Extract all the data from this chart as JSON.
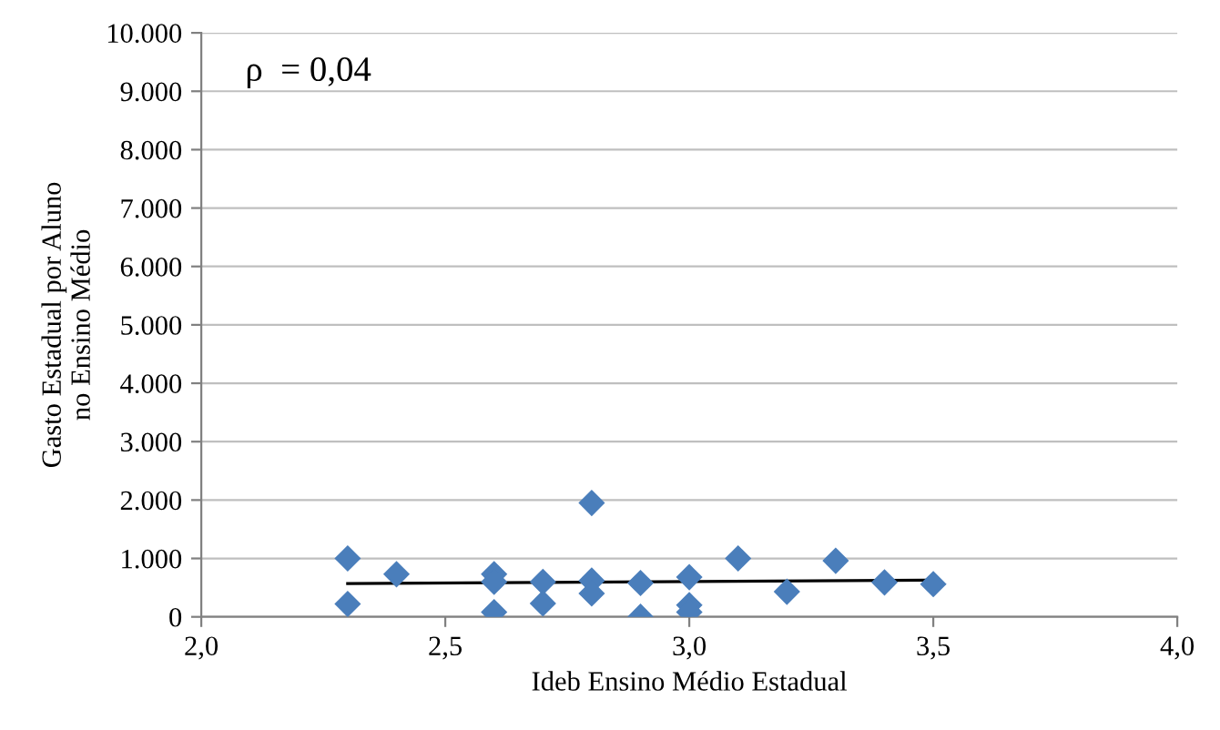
{
  "chart_data": {
    "type": "scatter",
    "xlabel": "Ideb Ensino Médio Estadual",
    "ylabel": "Gasto Estadual por Aluno\nno Ensino Médio",
    "annotations": [
      "ρ  = 0,04"
    ],
    "series": [
      {
        "color": "#4a7ebb",
        "marker": "diamond",
        "x": [
          2.3,
          2.3,
          2.4,
          2.6,
          2.6,
          2.6,
          2.7,
          2.7,
          2.8,
          2.8,
          2.8,
          2.9,
          2.9,
          3.0,
          3.0,
          3.0,
          3.1,
          3.2,
          3.3,
          3.4,
          3.5
        ],
        "values": [
          1000,
          220,
          730,
          730,
          600,
          80,
          600,
          230,
          1950,
          620,
          400,
          580,
          0,
          680,
          200,
          80,
          1000,
          430,
          960,
          590,
          560
        ]
      },
      {
        "type": "line",
        "color": "#000000",
        "marker": "none",
        "x": [
          2.3,
          3.5
        ],
        "values": [
          570,
          630
        ]
      }
    ],
    "xlim": [
      2.0,
      4.0
    ],
    "ylim": [
      0,
      10000
    ],
    "xticks": [
      {
        "value": 2.0,
        "label": "2,0"
      },
      {
        "value": 2.5,
        "label": "2,5"
      },
      {
        "value": 3.0,
        "label": "3,0"
      },
      {
        "value": 3.5,
        "label": "3,5"
      },
      {
        "value": 4.0,
        "label": "4,0"
      }
    ],
    "yticks": [
      0,
      {
        "value": 1000,
        "label": "1.000"
      },
      {
        "value": 2000,
        "label": "2.000"
      },
      {
        "value": 3000,
        "label": "3.000"
      },
      {
        "value": 4000,
        "label": "4.000"
      },
      {
        "value": 5000,
        "label": "5.000"
      },
      {
        "value": 6000,
        "label": "6.000"
      },
      {
        "value": 7000,
        "label": "7.000"
      },
      {
        "value": 8000,
        "label": "8.000"
      },
      {
        "value": 9000,
        "label": "9.000"
      },
      {
        "value": 10000,
        "label": "10.000"
      }
    ],
    "grid": "y",
    "legend": false
  }
}
